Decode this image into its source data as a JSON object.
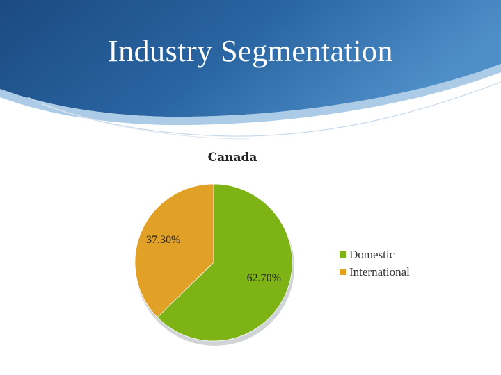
{
  "slide": {
    "title": "Industry Segmentation",
    "colors": {
      "banner_dark": "#1d4f86",
      "banner_light": "#4d8cc4",
      "accent_line": "#9fc3e3"
    }
  },
  "chart_data": {
    "type": "pie",
    "title": "Canada",
    "categories": [
      "Domestic",
      "International"
    ],
    "values": [
      62.7,
      37.3
    ],
    "value_labels": [
      "62.70%",
      "37.30%"
    ],
    "colors": [
      "#7db314",
      "#e1a026"
    ],
    "legend": {
      "position": "right",
      "entries": [
        "Domestic",
        "International"
      ]
    }
  }
}
